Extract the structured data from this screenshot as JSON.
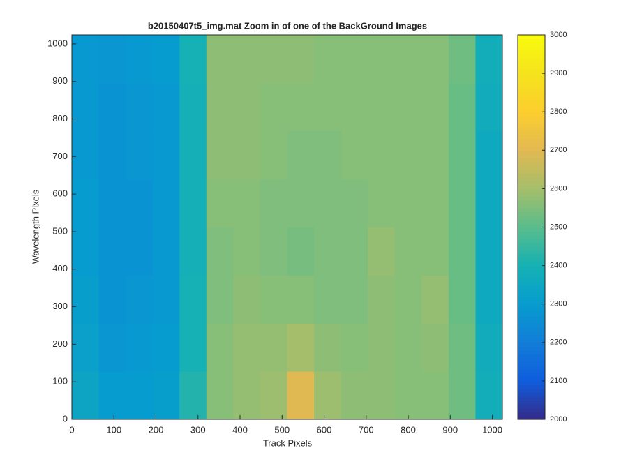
{
  "chart_data": {
    "type": "heatmap",
    "title": "b20150407t5_img.mat  Zoom in of one of the BackGround Images",
    "x_label": "Track Pixels",
    "y_label": "Wavelength Pixels",
    "x": [
      32,
      96,
      160,
      224,
      288,
      352,
      416,
      480,
      544,
      608,
      672,
      736,
      800,
      864,
      928,
      992
    ],
    "y": [
      64,
      192,
      320,
      448,
      576,
      704,
      832,
      960
    ],
    "values": [
      [
        2340,
        2300,
        2300,
        2310,
        2420,
        2560,
        2580,
        2590,
        2700,
        2590,
        2570,
        2570,
        2560,
        2560,
        2530,
        2380
      ],
      [
        2320,
        2280,
        2290,
        2300,
        2400,
        2560,
        2580,
        2580,
        2600,
        2570,
        2560,
        2570,
        2560,
        2570,
        2530,
        2370
      ],
      [
        2310,
        2270,
        2280,
        2290,
        2400,
        2550,
        2570,
        2560,
        2560,
        2550,
        2550,
        2570,
        2560,
        2580,
        2520,
        2360
      ],
      [
        2300,
        2270,
        2270,
        2290,
        2390,
        2550,
        2560,
        2550,
        2540,
        2550,
        2550,
        2580,
        2560,
        2560,
        2520,
        2360
      ],
      [
        2300,
        2270,
        2270,
        2290,
        2390,
        2560,
        2560,
        2550,
        2550,
        2550,
        2550,
        2560,
        2560,
        2560,
        2520,
        2360
      ],
      [
        2290,
        2270,
        2280,
        2290,
        2390,
        2570,
        2570,
        2560,
        2550,
        2550,
        2560,
        2560,
        2560,
        2560,
        2520,
        2360
      ],
      [
        2290,
        2270,
        2280,
        2290,
        2390,
        2570,
        2570,
        2560,
        2560,
        2560,
        2560,
        2560,
        2560,
        2560,
        2520,
        2370
      ],
      [
        2290,
        2280,
        2290,
        2300,
        2400,
        2570,
        2570,
        2570,
        2570,
        2560,
        2560,
        2560,
        2560,
        2560,
        2530,
        2380
      ]
    ],
    "xlim": [
      0,
      1024
    ],
    "ylim": [
      0,
      1024
    ],
    "xticks": [
      0,
      100,
      200,
      300,
      400,
      500,
      600,
      700,
      800,
      900,
      1000
    ],
    "yticks": [
      0,
      100,
      200,
      300,
      400,
      500,
      600,
      700,
      800,
      900,
      1000
    ],
    "colormap": "parula",
    "clim": [
      2000,
      3000
    ],
    "cticks": [
      2000,
      2100,
      2200,
      2300,
      2400,
      2500,
      2600,
      2700,
      2800,
      2900,
      3000
    ]
  }
}
